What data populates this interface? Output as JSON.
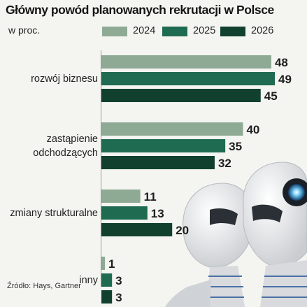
{
  "title": "Główny powód planowanych rekrutacji w Polsce",
  "subtitle": "w proc.",
  "source": "Źródło: Hays, Gartner",
  "colors": {
    "2024": "#8faa94",
    "2025": "#1f6b52",
    "2026": "#11412e"
  },
  "legend": [
    {
      "label": "2024",
      "color": "#8faa94"
    },
    {
      "label": "2025",
      "color": "#1f6b52"
    },
    {
      "label": "2026",
      "color": "#11412e"
    }
  ],
  "chart_data": {
    "type": "bar",
    "orientation": "horizontal",
    "title": "Główny powód planowanych rekrutacji w Polsce",
    "subtitle": "w proc.",
    "categories": [
      "rozwój biznesu",
      "zastąpienie odchodzących",
      "zmiany strukturalne",
      "inny"
    ],
    "category_lines": [
      [
        "rozwój biznesu"
      ],
      [
        "zastąpienie",
        "odchodzących"
      ],
      [
        "zmiany strukturalne"
      ],
      [
        "inny"
      ]
    ],
    "series": [
      {
        "name": "2024",
        "values": [
          48,
          40,
          11,
          1
        ]
      },
      {
        "name": "2025",
        "values": [
          49,
          35,
          13,
          3
        ]
      },
      {
        "name": "2026",
        "values": [
          45,
          32,
          20,
          3
        ]
      }
    ],
    "xlim": [
      0,
      49
    ],
    "grid": false,
    "legend_position": "top"
  }
}
